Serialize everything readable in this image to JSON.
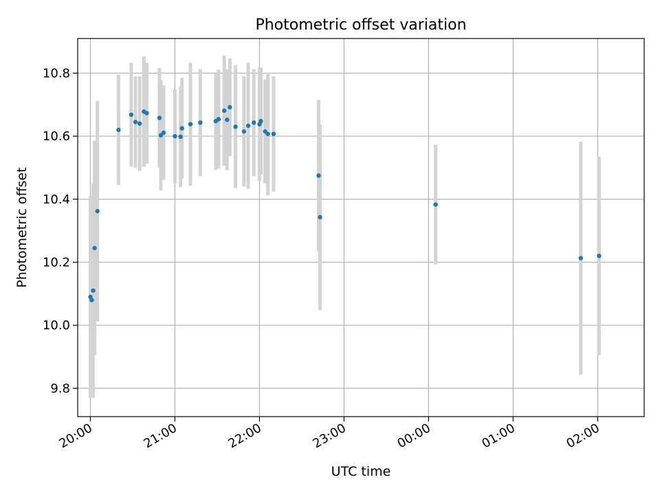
{
  "chart_data": {
    "type": "scatter",
    "title": "Photometric offset variation",
    "xlabel": "UTC time",
    "ylabel": "Photometric offset",
    "x_ticks": [
      "20:00",
      "21:00",
      "22:00",
      "23:00",
      "00:00",
      "01:00",
      "02:00"
    ],
    "y_ticks": [
      "9.8",
      "10.0",
      "10.2",
      "10.4",
      "10.6",
      "10.8"
    ],
    "y_tick_values": [
      9.8,
      10.0,
      10.2,
      10.4,
      10.6,
      10.8
    ],
    "ylim": [
      9.71,
      10.91
    ],
    "xlim": [
      "19:51",
      "02:33"
    ],
    "grid": true,
    "errorbar_color": "#d3d3d3",
    "marker_color": "#1f77b4",
    "points": [
      {
        "t": "20:00",
        "y": 10.09,
        "err": 0.32
      },
      {
        "t": "20:01",
        "y": 10.08,
        "err": 0.31
      },
      {
        "t": "20:02",
        "y": 10.11,
        "err": 0.34
      },
      {
        "t": "20:03",
        "y": 10.245,
        "err": 0.34
      },
      {
        "t": "20:05",
        "y": 10.362,
        "err": 0.35
      },
      {
        "t": "20:20",
        "y": 10.62,
        "err": 0.175
      },
      {
        "t": "20:29",
        "y": 10.668,
        "err": 0.165
      },
      {
        "t": "20:32",
        "y": 10.645,
        "err": 0.145
      },
      {
        "t": "20:35",
        "y": 10.64,
        "err": 0.15
      },
      {
        "t": "20:38",
        "y": 10.678,
        "err": 0.175
      },
      {
        "t": "20:40",
        "y": 10.673,
        "err": 0.16
      },
      {
        "t": "20:49",
        "y": 10.658,
        "err": 0.158
      },
      {
        "t": "20:50",
        "y": 10.603,
        "err": 0.175
      },
      {
        "t": "20:52",
        "y": 10.611,
        "err": 0.15
      },
      {
        "t": "21:00",
        "y": 10.6,
        "err": 0.15
      },
      {
        "t": "21:04",
        "y": 10.598,
        "err": 0.16
      },
      {
        "t": "21:05",
        "y": 10.625,
        "err": 0.16
      },
      {
        "t": "21:11",
        "y": 10.638,
        "err": 0.195
      },
      {
        "t": "21:18",
        "y": 10.643,
        "err": 0.17
      },
      {
        "t": "21:29",
        "y": 10.648,
        "err": 0.155
      },
      {
        "t": "21:31",
        "y": 10.654,
        "err": 0.157
      },
      {
        "t": "21:35",
        "y": 10.681,
        "err": 0.175
      },
      {
        "t": "21:37",
        "y": 10.652,
        "err": 0.16
      },
      {
        "t": "21:39",
        "y": 10.692,
        "err": 0.155
      },
      {
        "t": "21:43",
        "y": 10.63,
        "err": 0.195
      },
      {
        "t": "21:49",
        "y": 10.615,
        "err": 0.175
      },
      {
        "t": "21:52",
        "y": 10.633,
        "err": 0.2
      },
      {
        "t": "21:56",
        "y": 10.643,
        "err": 0.17
      },
      {
        "t": "22:00",
        "y": 10.638,
        "err": 0.18
      },
      {
        "t": "22:01",
        "y": 10.648,
        "err": 0.17
      },
      {
        "t": "22:04",
        "y": 10.615,
        "err": 0.165
      },
      {
        "t": "22:06",
        "y": 10.607,
        "err": 0.195
      },
      {
        "t": "22:10",
        "y": 10.607,
        "err": 0.183
      },
      {
        "t": "22:42",
        "y": 10.475,
        "err": 0.24
      },
      {
        "t": "22:43",
        "y": 10.343,
        "err": 0.295
      },
      {
        "t": "00:05",
        "y": 10.383,
        "err": 0.19
      },
      {
        "t": "01:48",
        "y": 10.213,
        "err": 0.37
      },
      {
        "t": "02:01",
        "y": 10.22,
        "err": 0.315
      }
    ]
  }
}
